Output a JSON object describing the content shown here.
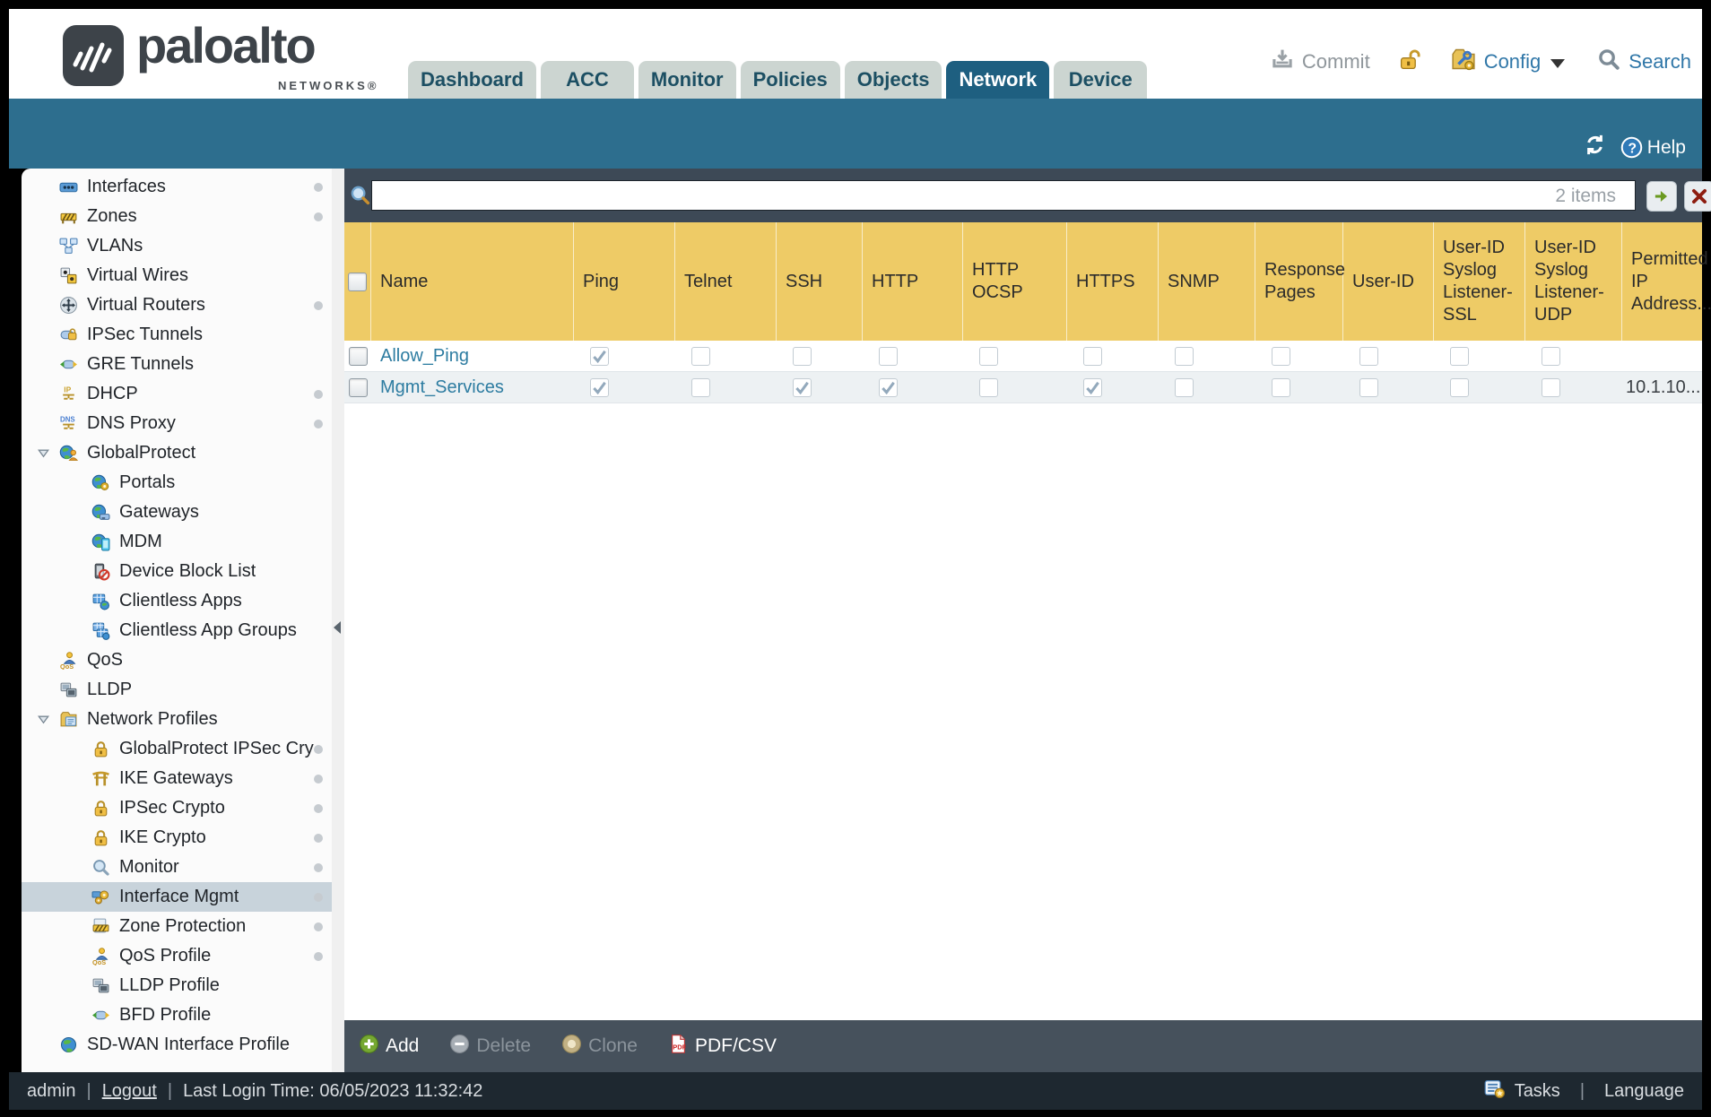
{
  "brand": {
    "name": "paloalto",
    "sub": "NETWORKS®"
  },
  "header": {
    "tabs": [
      {
        "label": "Dashboard",
        "active": false
      },
      {
        "label": "ACC",
        "active": false
      },
      {
        "label": "Monitor",
        "active": false
      },
      {
        "label": "Policies",
        "active": false
      },
      {
        "label": "Objects",
        "active": false
      },
      {
        "label": "Network",
        "active": true
      },
      {
        "label": "Device",
        "active": false
      }
    ],
    "actions": {
      "commit": "Commit",
      "config": "Config",
      "search": "Search"
    }
  },
  "bluebar": {
    "help": "Help"
  },
  "sidebar": {
    "items": [
      {
        "label": "Interfaces",
        "level": 0,
        "icon": "interfaces",
        "caret": false,
        "dot": true,
        "selected": false
      },
      {
        "label": "Zones",
        "level": 0,
        "icon": "zones",
        "caret": false,
        "dot": true,
        "selected": false
      },
      {
        "label": "VLANs",
        "level": 0,
        "icon": "vlans",
        "caret": false,
        "dot": false,
        "selected": false
      },
      {
        "label": "Virtual Wires",
        "level": 0,
        "icon": "virtual-wires",
        "caret": false,
        "dot": false,
        "selected": false
      },
      {
        "label": "Virtual Routers",
        "level": 0,
        "icon": "virtual-routers",
        "caret": false,
        "dot": true,
        "selected": false
      },
      {
        "label": "IPSec Tunnels",
        "level": 0,
        "icon": "ipsec-tunnels",
        "caret": false,
        "dot": false,
        "selected": false
      },
      {
        "label": "GRE Tunnels",
        "level": 0,
        "icon": "gre-tunnels",
        "caret": false,
        "dot": false,
        "selected": false
      },
      {
        "label": "DHCP",
        "level": 0,
        "icon": "dhcp",
        "caret": false,
        "dot": true,
        "selected": false
      },
      {
        "label": "DNS Proxy",
        "level": 0,
        "icon": "dns-proxy",
        "caret": false,
        "dot": true,
        "selected": false
      },
      {
        "label": "GlobalProtect",
        "level": 0,
        "icon": "globalprotect",
        "caret": true,
        "dot": false,
        "selected": false
      },
      {
        "label": "Portals",
        "level": 1,
        "icon": "gp-portals",
        "caret": false,
        "dot": false,
        "selected": false
      },
      {
        "label": "Gateways",
        "level": 1,
        "icon": "gp-gateways",
        "caret": false,
        "dot": false,
        "selected": false
      },
      {
        "label": "MDM",
        "level": 1,
        "icon": "gp-mdm",
        "caret": false,
        "dot": false,
        "selected": false
      },
      {
        "label": "Device Block List",
        "level": 1,
        "icon": "device-block-list",
        "caret": false,
        "dot": false,
        "selected": false
      },
      {
        "label": "Clientless Apps",
        "level": 1,
        "icon": "clientless-apps",
        "caret": false,
        "dot": false,
        "selected": false
      },
      {
        "label": "Clientless App Groups",
        "level": 1,
        "icon": "clientless-app-groups",
        "caret": false,
        "dot": false,
        "selected": false
      },
      {
        "label": "QoS",
        "level": 0,
        "icon": "qos",
        "caret": false,
        "dot": false,
        "selected": false
      },
      {
        "label": "LLDP",
        "level": 0,
        "icon": "lldp",
        "caret": false,
        "dot": false,
        "selected": false
      },
      {
        "label": "Network Profiles",
        "level": 0,
        "icon": "network-profiles",
        "caret": true,
        "dot": false,
        "selected": false
      },
      {
        "label": "GlobalProtect IPSec Crypto",
        "level": 1,
        "icon": "lock",
        "caret": false,
        "dot": true,
        "selected": false
      },
      {
        "label": "IKE Gateways",
        "level": 1,
        "icon": "ike-gateways",
        "caret": false,
        "dot": true,
        "selected": false
      },
      {
        "label": "IPSec Crypto",
        "level": 1,
        "icon": "lock",
        "caret": false,
        "dot": true,
        "selected": false
      },
      {
        "label": "IKE Crypto",
        "level": 1,
        "icon": "lock",
        "caret": false,
        "dot": true,
        "selected": false
      },
      {
        "label": "Monitor",
        "level": 1,
        "icon": "monitor-profile",
        "caret": false,
        "dot": true,
        "selected": false
      },
      {
        "label": "Interface Mgmt",
        "level": 1,
        "icon": "interface-mgmt",
        "caret": false,
        "dot": true,
        "selected": true
      },
      {
        "label": "Zone Protection",
        "level": 1,
        "icon": "zone-protection",
        "caret": false,
        "dot": true,
        "selected": false
      },
      {
        "label": "QoS Profile",
        "level": 1,
        "icon": "qos-profile",
        "caret": false,
        "dot": true,
        "selected": false
      },
      {
        "label": "LLDP Profile",
        "level": 1,
        "icon": "lldp-profile",
        "caret": false,
        "dot": false,
        "selected": false
      },
      {
        "label": "BFD Profile",
        "level": 1,
        "icon": "bfd-profile",
        "caret": false,
        "dot": false,
        "selected": false
      },
      {
        "label": "SD-WAN Interface Profile",
        "level": 0,
        "icon": "sdwan-profile",
        "caret": false,
        "dot": false,
        "selected": false
      }
    ]
  },
  "search": {
    "value": "",
    "count": "2 items"
  },
  "table": {
    "columns": [
      "Name",
      "Ping",
      "Telnet",
      "SSH",
      "HTTP",
      "HTTP OCSP",
      "HTTPS",
      "SNMP",
      "Response Pages",
      "User-ID",
      "User-ID Syslog Listener-SSL",
      "User-ID Syslog Listener-UDP",
      "Permitted IP Address..."
    ],
    "rows": [
      {
        "name": "Allow_Ping",
        "checks": [
          true,
          false,
          false,
          false,
          false,
          false,
          false,
          false,
          false,
          false,
          false
        ],
        "permitted_ip": ""
      },
      {
        "name": "Mgmt_Services",
        "checks": [
          true,
          false,
          true,
          true,
          false,
          true,
          false,
          false,
          false,
          false,
          false
        ],
        "permitted_ip": "10.1.10..."
      }
    ]
  },
  "toolbar": [
    {
      "label": "Add",
      "icon": "add",
      "enabled": true
    },
    {
      "label": "Delete",
      "icon": "delete",
      "enabled": false
    },
    {
      "label": "Clone",
      "icon": "clone",
      "enabled": false
    },
    {
      "label": "PDF/CSV",
      "icon": "pdf",
      "enabled": true
    }
  ],
  "footer": {
    "user": "admin",
    "logout": "Logout",
    "last_login": "Last Login Time: 06/05/2023 11:32:42",
    "tasks": "Tasks",
    "language": "Language"
  }
}
